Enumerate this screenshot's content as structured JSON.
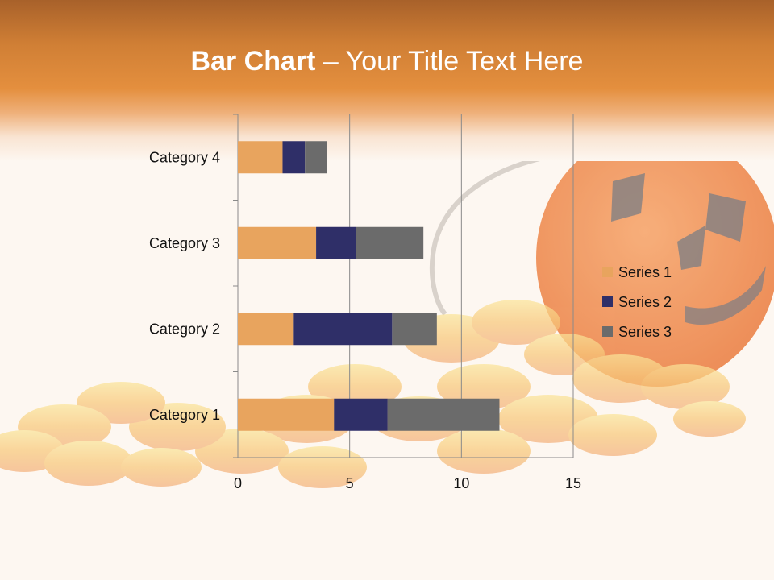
{
  "slide": {
    "title_bold": "Bar Chart",
    "title_dash": " – ",
    "title_rest": "Your Title Text Here"
  },
  "background": {
    "image_subject": "jack-o-lantern-pail-with-candy-corn"
  },
  "colors": {
    "header_orange": "#e48f3e",
    "slide_bg": "#fdf7f1",
    "series1": "#e8a45e",
    "series2": "#2f2f68",
    "series3": "#6b6b6b"
  },
  "chart_data": {
    "type": "bar",
    "orientation": "horizontal",
    "stacked": true,
    "categories": [
      "Category 1",
      "Category 2",
      "Category 3",
      "Category 4"
    ],
    "series": [
      {
        "name": "Series 1",
        "values": [
          4.3,
          2.5,
          3.5,
          2.0
        ],
        "color": "#e8a45e"
      },
      {
        "name": "Series 2",
        "values": [
          2.4,
          4.4,
          1.8,
          1.0
        ],
        "color": "#2f2f68"
      },
      {
        "name": "Series 3",
        "values": [
          5.0,
          2.0,
          3.0,
          1.0
        ],
        "color": "#6b6b6b"
      }
    ],
    "xlim": [
      0,
      15
    ],
    "x_ticks": [
      "0",
      "5",
      "10",
      "15"
    ],
    "grid": true,
    "legend_position": "right"
  }
}
